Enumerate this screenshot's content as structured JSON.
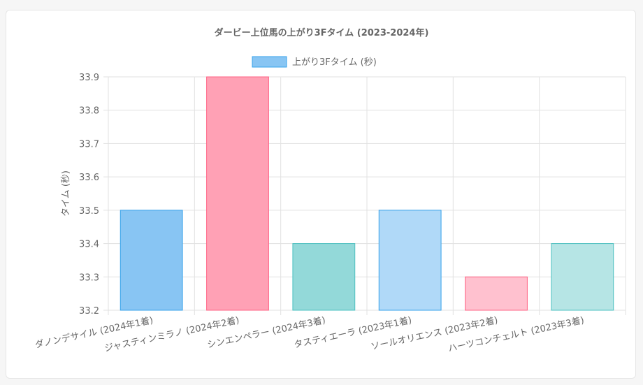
{
  "chart_data": {
    "type": "bar",
    "title": "ダービー上位馬の上がり3Fタイム (2023-2024年)",
    "xlabel": "",
    "ylabel": "タイム (秒)",
    "ylim": [
      33.2,
      33.9
    ],
    "yticks": [
      "33.2",
      "33.3",
      "33.4",
      "33.5",
      "33.6",
      "33.7",
      "33.8",
      "33.9"
    ],
    "grid": true,
    "legend_position": "top",
    "categories": [
      "ダノンデサイル (2024年1着)",
      "ジャスティンミラノ (2024年2着)",
      "シンエンペラー (2024年3着)",
      "タスティエーラ (2023年1着)",
      "ソールオリエンス (2023年2着)",
      "ハーツコンチェルト (2023年3着)"
    ],
    "series": [
      {
        "name": "上がり3Fタイム (秒)",
        "values": [
          33.5,
          33.9,
          33.4,
          33.5,
          33.3,
          33.4
        ],
        "fill_colors": [
          "#88c5f3",
          "#ffa1b5",
          "#93d9d9",
          "#b0d9f8",
          "#ffc1cf",
          "#b6e5e5"
        ],
        "border_colors": [
          "#36a2eb",
          "#ff6384",
          "#4bc0c0",
          "#36a2eb",
          "#ff6384",
          "#4bc0c0"
        ]
      }
    ],
    "legend": {
      "fill": "#88c5f3",
      "border": "#36a2eb"
    }
  }
}
